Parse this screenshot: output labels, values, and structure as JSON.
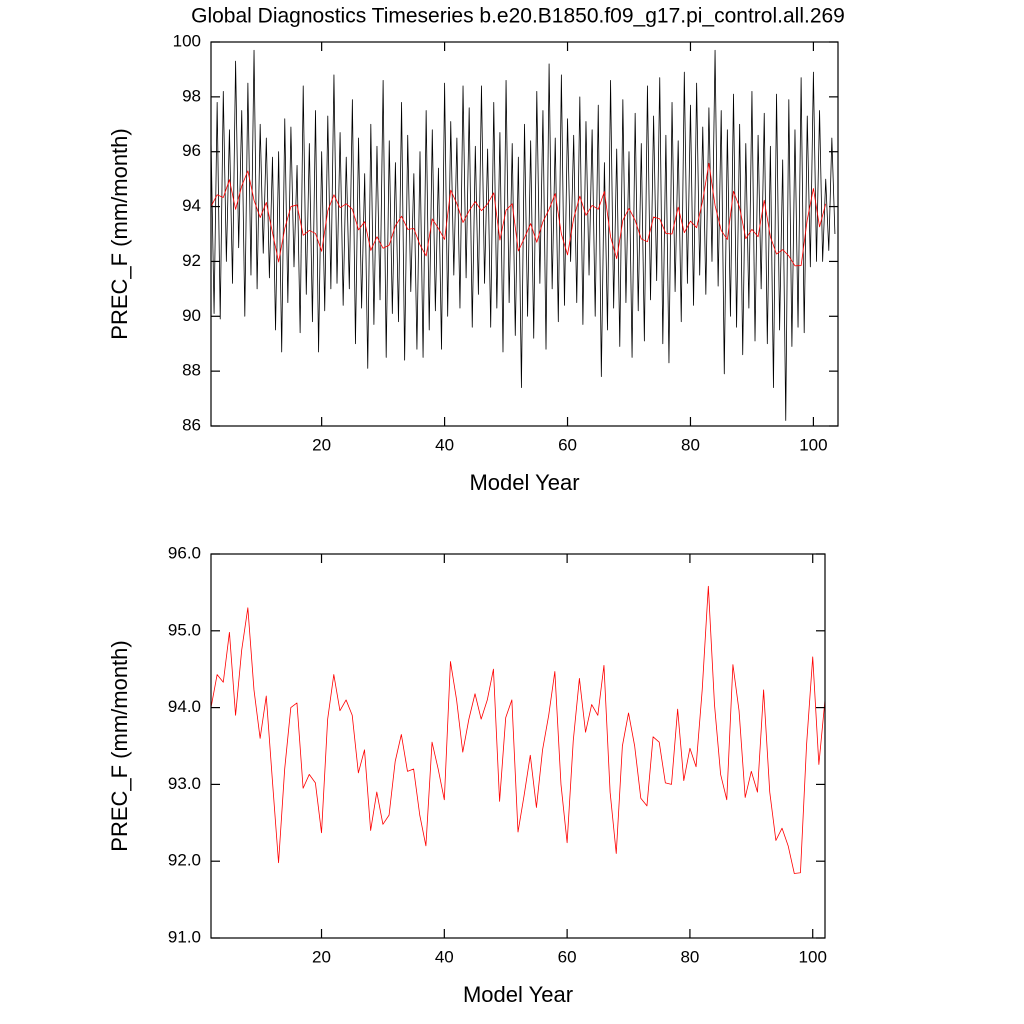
{
  "chart_data": [
    {
      "type": "line",
      "title": "Global Diagnostics Timeseries b.e20.B1850.f09_g17.pi_control.all.269",
      "x_label": "Model Year",
      "y_label": "PREC_F (mm/month)",
      "xlim": [
        2,
        104
      ],
      "xticks": [
        20,
        40,
        60,
        80,
        100
      ],
      "ylim": [
        86,
        100
      ],
      "yticks": [
        86,
        88,
        90,
        92,
        94,
        96,
        98,
        100
      ],
      "x": [
        2,
        3,
        4,
        5,
        6,
        7,
        8,
        9,
        10,
        11,
        12,
        13,
        14,
        15,
        16,
        17,
        18,
        19,
        20,
        21,
        22,
        23,
        24,
        25,
        26,
        27,
        28,
        29,
        30,
        31,
        32,
        33,
        34,
        35,
        36,
        37,
        38,
        39,
        40,
        41,
        42,
        43,
        44,
        45,
        46,
        47,
        48,
        49,
        50,
        51,
        52,
        53,
        54,
        55,
        56,
        57,
        58,
        59,
        60,
        61,
        62,
        63,
        64,
        65,
        66,
        67,
        68,
        69,
        70,
        71,
        72,
        73,
        74,
        75,
        76,
        77,
        78,
        79,
        80,
        81,
        82,
        83,
        84,
        85,
        86,
        87,
        88,
        89,
        90,
        91,
        92,
        93,
        94,
        95,
        96,
        97,
        98,
        99,
        100,
        101,
        102
      ],
      "series": [
        {
          "color": "#000000",
          "x": [
            2,
            2.5,
            3,
            3.5,
            4,
            4.5,
            5,
            5.5,
            6,
            6.5,
            7,
            7.5,
            8,
            8.5,
            9,
            9.5,
            10,
            10.5,
            11,
            11.5,
            12,
            12.5,
            13,
            13.5,
            14,
            14.5,
            15,
            15.5,
            16,
            16.5,
            17,
            17.5,
            18,
            18.5,
            19,
            19.5,
            20,
            20.5,
            21,
            21.5,
            22,
            22.5,
            23,
            23.5,
            24,
            24.5,
            25,
            25.5,
            26,
            26.5,
            27,
            27.5,
            28,
            28.5,
            29,
            29.5,
            30,
            30.5,
            31,
            31.5,
            32,
            32.5,
            33,
            33.5,
            34,
            34.5,
            35,
            35.5,
            36,
            36.5,
            37,
            37.5,
            38,
            38.5,
            39,
            39.5,
            40,
            40.5,
            41,
            41.5,
            42,
            42.5,
            43,
            43.5,
            44,
            44.5,
            45,
            45.5,
            46,
            46.5,
            47,
            47.5,
            48,
            48.5,
            49,
            49.5,
            50,
            50.5,
            51,
            51.5,
            52,
            52.5,
            53,
            53.5,
            54,
            54.5,
            55,
            55.5,
            56,
            56.5,
            57,
            57.5,
            58,
            58.5,
            59,
            59.5,
            60,
            60.5,
            61,
            61.5,
            62,
            62.5,
            63,
            63.5,
            64,
            64.5,
            65,
            65.5,
            66,
            66.5,
            67,
            67.5,
            68,
            68.5,
            69,
            69.5,
            70,
            70.5,
            71,
            71.5,
            72,
            72.5,
            73,
            73.5,
            74,
            74.5,
            75,
            75.5,
            76,
            76.5,
            77,
            77.5,
            78,
            78.5,
            79,
            79.5,
            80,
            80.5,
            81,
            81.5,
            82,
            82.5,
            83,
            83.5,
            84,
            84.5,
            85,
            85.5,
            86,
            86.5,
            87,
            87.5,
            88,
            88.5,
            89,
            89.5,
            90,
            90.5,
            91,
            91.5,
            92,
            92.5,
            93,
            93.5,
            94,
            94.5,
            95,
            95.5,
            96,
            96.5,
            97,
            97.5,
            98,
            98.5,
            99,
            99.5,
            100,
            100.5,
            101,
            101.5,
            102,
            102.5,
            103,
            103.5
          ],
          "values": [
            96.5,
            90.1,
            97.8,
            89.9,
            98.2,
            92.0,
            96.8,
            91.2,
            99.3,
            92.5,
            97.5,
            90.0,
            98.5,
            91.5,
            99.7,
            91.0,
            97.0,
            92.3,
            96.5,
            91.4,
            95.8,
            89.5,
            96.0,
            88.7,
            97.2,
            90.5,
            96.9,
            91.8,
            95.5,
            89.4,
            98.4,
            90.8,
            96.3,
            89.8,
            97.5,
            88.7,
            96.0,
            90.2,
            97.3,
            91.0,
            98.8,
            91.2,
            96.7,
            90.4,
            95.8,
            91.0,
            97.9,
            89.0,
            96.5,
            90.3,
            95.2,
            88.1,
            97.0,
            89.7,
            96.2,
            90.6,
            98.6,
            88.5,
            96.4,
            90.1,
            95.6,
            89.8,
            97.8,
            88.4,
            96.6,
            90.9,
            95.2,
            88.8,
            96.0,
            88.5,
            97.5,
            89.5,
            96.8,
            90.2,
            95.4,
            88.8,
            98.5,
            90.0,
            97.1,
            91.5,
            96.5,
            90.3,
            98.4,
            91.4,
            97.6,
            89.6,
            96.2,
            90.8,
            98.4,
            91.2,
            96.1,
            89.6,
            97.8,
            90.3,
            96.7,
            88.7,
            98.6,
            90.5,
            96.3,
            89.3,
            95.8,
            87.4,
            97.0,
            90.0,
            96.4,
            89.2,
            98.2,
            91.2,
            97.5,
            88.8,
            99.2,
            91.0,
            96.5,
            89.8,
            98.8,
            90.4,
            97.2,
            92.0,
            96.6,
            90.5,
            98.0,
            89.7,
            97.1,
            91.5,
            96.8,
            90.0,
            97.7,
            87.8,
            95.6,
            89.5,
            98.6,
            90.3,
            96.1,
            88.9,
            97.9,
            90.5,
            96.0,
            88.5,
            97.4,
            90.2,
            96.3,
            89.1,
            98.4,
            90.6,
            97.3,
            91.3,
            98.7,
            89.0,
            96.6,
            88.3,
            97.8,
            90.9,
            96.4,
            89.8,
            98.9,
            91.2,
            97.7,
            90.4,
            98.5,
            91.5,
            96.9,
            90.8,
            97.6,
            92.0,
            99.7,
            91.1,
            97.5,
            87.9,
            96.8,
            90.0,
            98.1,
            89.6,
            97.0,
            88.6,
            96.3,
            90.3,
            98.2,
            89.1,
            96.6,
            91.0,
            97.4,
            89.0,
            96.2,
            87.4,
            98.1,
            89.5,
            95.7,
            86.2,
            97.9,
            88.9,
            96.8,
            89.6,
            98.7,
            89.4,
            97.3,
            91.8,
            98.9,
            92.0,
            97.5,
            92.0,
            95.0,
            92.4,
            96.5,
            93.0
          ]
        },
        {
          "color": "#ff0000",
          "values": [
            94.0,
            94.43,
            94.33,
            94.98,
            93.9,
            94.75,
            95.3,
            94.23,
            93.6,
            94.15,
            93.05,
            91.98,
            93.2,
            94.0,
            94.06,
            92.95,
            93.13,
            93.02,
            92.37,
            93.85,
            94.43,
            93.96,
            94.1,
            93.9,
            93.15,
            93.45,
            92.4,
            92.9,
            92.48,
            92.6,
            93.3,
            93.65,
            93.17,
            93.2,
            92.6,
            92.2,
            93.55,
            93.2,
            92.8,
            94.6,
            94.1,
            93.42,
            93.85,
            94.18,
            93.85,
            94.1,
            94.5,
            92.78,
            93.87,
            94.1,
            92.38,
            92.86,
            93.38,
            92.7,
            93.45,
            93.9,
            94.47,
            93.0,
            92.24,
            93.57,
            94.38,
            93.68,
            94.04,
            93.9,
            94.55,
            92.9,
            92.1,
            93.5,
            93.93,
            93.5,
            92.82,
            92.72,
            93.62,
            93.55,
            93.02,
            93.0,
            93.98,
            93.05,
            93.47,
            93.23,
            94.23,
            95.58,
            94.04,
            93.13,
            92.8,
            94.56,
            93.96,
            92.83,
            93.17,
            92.9,
            94.23,
            92.9,
            92.27,
            92.43,
            92.2,
            91.84,
            91.85,
            93.52,
            94.66,
            93.26,
            94.1
          ]
        }
      ]
    },
    {
      "type": "line",
      "x_label": "Model Year",
      "y_label": "PREC_F (mm/month)",
      "xlim": [
        2,
        102
      ],
      "xticks": [
        20,
        40,
        60,
        80,
        100
      ],
      "ylim": [
        91,
        96
      ],
      "yticks": [
        {
          "value": 91,
          "label": "91.0"
        },
        {
          "value": 92,
          "label": "92.0"
        },
        {
          "value": 93,
          "label": "93.0"
        },
        {
          "value": 94,
          "label": "94.0"
        },
        {
          "value": 95,
          "label": "95.0"
        },
        {
          "value": 96,
          "label": "96.0"
        }
      ],
      "x": [
        2,
        3,
        4,
        5,
        6,
        7,
        8,
        9,
        10,
        11,
        12,
        13,
        14,
        15,
        16,
        17,
        18,
        19,
        20,
        21,
        22,
        23,
        24,
        25,
        26,
        27,
        28,
        29,
        30,
        31,
        32,
        33,
        34,
        35,
        36,
        37,
        38,
        39,
        40,
        41,
        42,
        43,
        44,
        45,
        46,
        47,
        48,
        49,
        50,
        51,
        52,
        53,
        54,
        55,
        56,
        57,
        58,
        59,
        60,
        61,
        62,
        63,
        64,
        65,
        66,
        67,
        68,
        69,
        70,
        71,
        72,
        73,
        74,
        75,
        76,
        77,
        78,
        79,
        80,
        81,
        82,
        83,
        84,
        85,
        86,
        87,
        88,
        89,
        90,
        91,
        92,
        93,
        94,
        95,
        96,
        97,
        98,
        99,
        100,
        101,
        102
      ],
      "series": [
        {
          "color": "#ff0000",
          "values": [
            94.0,
            94.43,
            94.33,
            94.98,
            93.9,
            94.75,
            95.3,
            94.23,
            93.6,
            94.15,
            93.05,
            91.98,
            93.2,
            94.0,
            94.06,
            92.95,
            93.13,
            93.02,
            92.37,
            93.85,
            94.43,
            93.96,
            94.1,
            93.9,
            93.15,
            93.45,
            92.4,
            92.9,
            92.48,
            92.6,
            93.3,
            93.65,
            93.17,
            93.2,
            92.6,
            92.2,
            93.55,
            93.2,
            92.8,
            94.6,
            94.1,
            93.42,
            93.85,
            94.18,
            93.85,
            94.1,
            94.5,
            92.78,
            93.87,
            94.1,
            92.38,
            92.86,
            93.38,
            92.7,
            93.45,
            93.9,
            94.47,
            93.0,
            92.24,
            93.57,
            94.38,
            93.68,
            94.04,
            93.9,
            94.55,
            92.9,
            92.1,
            93.5,
            93.93,
            93.5,
            92.82,
            92.72,
            93.62,
            93.55,
            93.02,
            93.0,
            93.98,
            93.05,
            93.47,
            93.23,
            94.23,
            95.58,
            94.04,
            93.13,
            92.8,
            94.56,
            93.96,
            92.83,
            93.17,
            92.9,
            94.23,
            92.9,
            92.27,
            92.43,
            92.2,
            91.84,
            91.85,
            93.52,
            94.66,
            93.26,
            94.1
          ]
        }
      ]
    }
  ]
}
